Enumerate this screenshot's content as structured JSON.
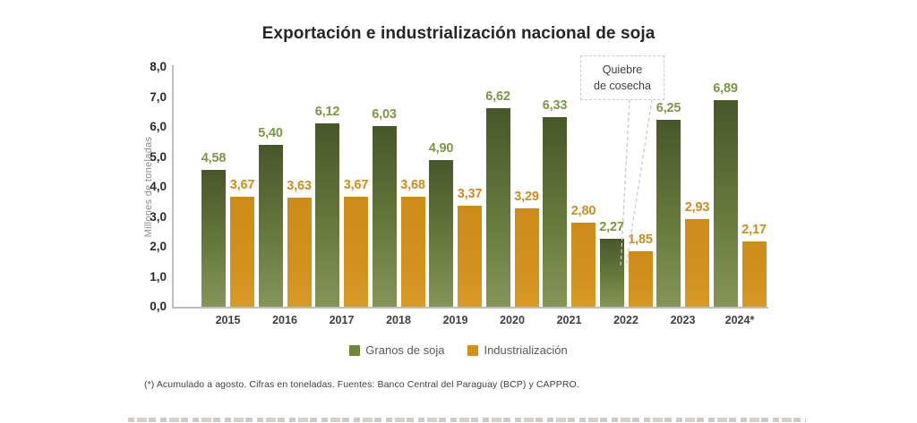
{
  "title": "Exportación e industrialización nacional de soja",
  "y_axis": {
    "label": "Millones de toneladas",
    "ticks": [
      "8,0",
      "7,0",
      "6,0",
      "5,0",
      "4,0",
      "3,0",
      "2,0",
      "1,0",
      "0,0"
    ]
  },
  "callout": {
    "line1": "Quiebre",
    "line2": "de cosecha"
  },
  "legend": [
    {
      "label": "Granos de soja",
      "color": "#6d8839"
    },
    {
      "label": "Industrialización",
      "color": "#d29018"
    }
  ],
  "footnote": "(*) Acumulado a agosto. Cifras en toneladas. Fuentes: Banco Central del Paraguay (BCP) y CAPPRO.",
  "chart_data": {
    "type": "bar",
    "title": "Exportación e industrialización nacional de soja",
    "categories": [
      "2015",
      "2016",
      "2017",
      "2018",
      "2019",
      "2020",
      "2021",
      "2022",
      "2023",
      "2024*"
    ],
    "series": [
      {
        "name": "Granos de soja",
        "color": "#66793c",
        "label_color": "#7c9644",
        "values": [
          4.58,
          5.4,
          6.12,
          6.03,
          4.9,
          6.62,
          6.33,
          2.27,
          6.25,
          6.89
        ]
      },
      {
        "name": "Industrialización",
        "color": "#d2901c",
        "label_color": "#cf8c1b",
        "values": [
          3.67,
          3.63,
          3.67,
          3.68,
          3.37,
          3.29,
          2.8,
          1.85,
          2.93,
          2.17
        ]
      }
    ],
    "xlabel": "",
    "ylabel": "Millones de toneladas",
    "ylim": [
      0,
      8
    ],
    "ytick_step": 1.0,
    "grid": false,
    "legend_position": "bottom",
    "decimal_separator": ",",
    "annotation": {
      "text": "Quiebre de cosecha",
      "target_category": "2022"
    }
  }
}
